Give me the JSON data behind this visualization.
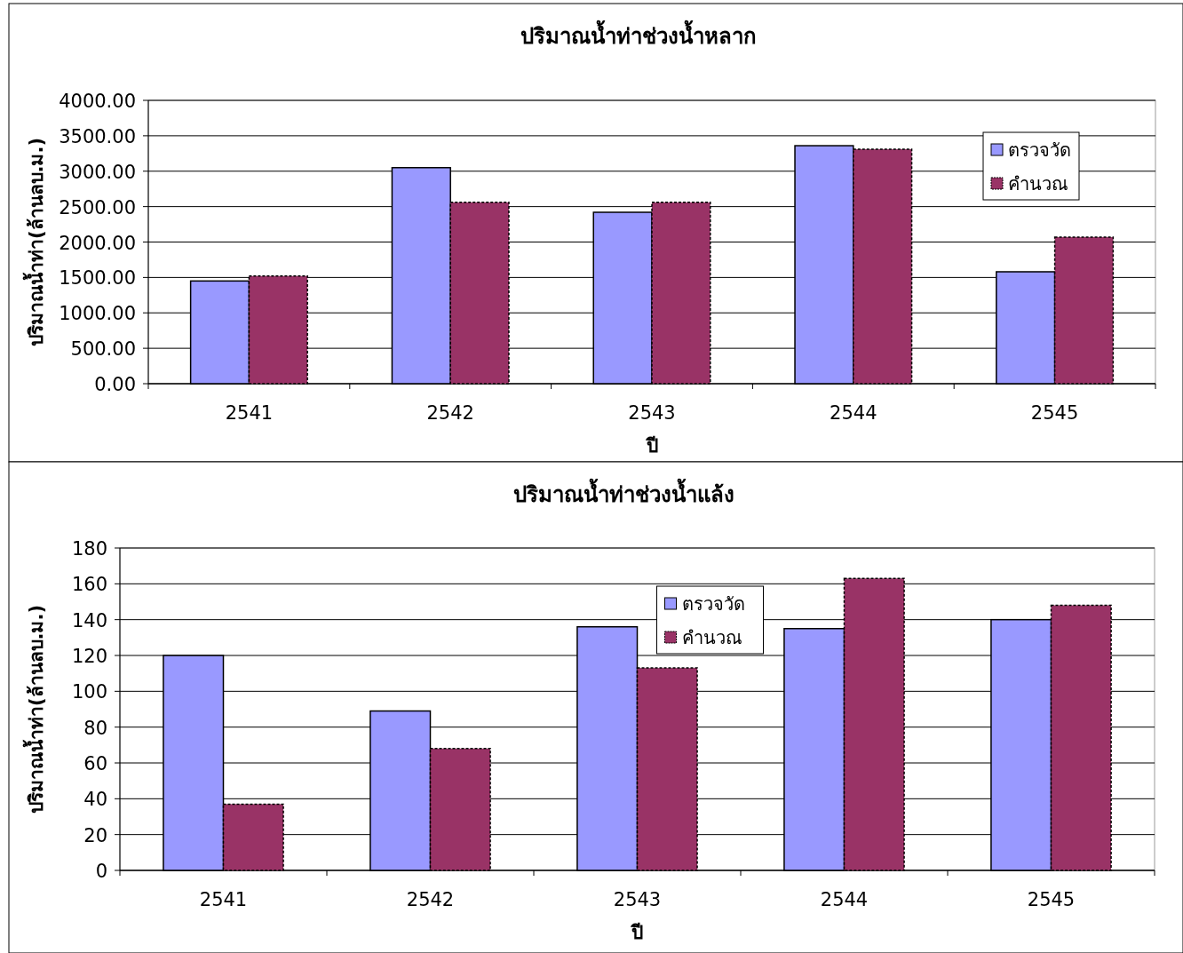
{
  "chart_data": [
    {
      "type": "bar",
      "title": "ปริมาณน้ำท่าช่วงน้ำหลาก",
      "xlabel": "ปี",
      "ylabel": "ปริมาณน้ำท่า(ล้านลบ.ม.)",
      "categories": [
        "2541",
        "2542",
        "2543",
        "2544",
        "2545"
      ],
      "series": [
        {
          "name": "ตรวจวัด",
          "color": "#9999ff",
          "values": [
            1450,
            3050,
            2420,
            3360,
            1580
          ]
        },
        {
          "name": "คำนวณ",
          "color": "#993366",
          "values": [
            1520,
            2560,
            2560,
            3310,
            2070
          ]
        }
      ],
      "ylim": [
        0,
        4000
      ],
      "yticks": [
        {
          "value": 0,
          "label": "0.00"
        },
        {
          "value": 500,
          "label": "500.00"
        },
        {
          "value": 1000,
          "label": "1000.00"
        },
        {
          "value": 1500,
          "label": "1500.00"
        },
        {
          "value": 2000,
          "label": "2000.00"
        },
        {
          "value": 2500,
          "label": "2500.00"
        },
        {
          "value": 3000,
          "label": "3000.00"
        },
        {
          "value": 3500,
          "label": "3500.00"
        },
        {
          "value": 4000,
          "label": "4000.00"
        }
      ],
      "grid": "y",
      "legend": "top right"
    },
    {
      "type": "bar",
      "title": "ปริมาณน้ำท่าช่วงน้ำแล้ง",
      "xlabel": "ปี",
      "ylabel": "ปริมาณน้ำท่า(ล้านลบ.ม.)",
      "categories": [
        "2541",
        "2542",
        "2543",
        "2544",
        "2545"
      ],
      "series": [
        {
          "name": "ตรวจวัด",
          "color": "#9999ff",
          "values": [
            120,
            89,
            136,
            135,
            140
          ]
        },
        {
          "name": "คำนวณ",
          "color": "#993366",
          "values": [
            37,
            68,
            113,
            163,
            148
          ]
        }
      ],
      "ylim": [
        0,
        180
      ],
      "yticks": [
        0,
        20,
        40,
        60,
        80,
        100,
        120,
        140,
        160,
        180
      ],
      "grid": "y",
      "legend": "top"
    }
  ]
}
